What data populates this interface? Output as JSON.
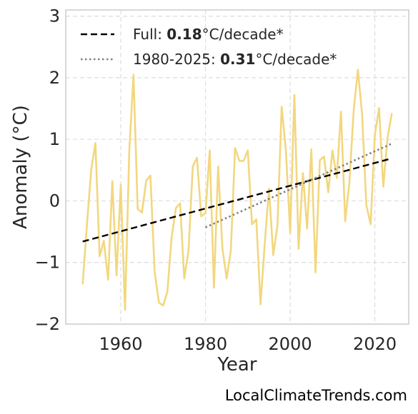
{
  "colors": {
    "series": "#f2d77e",
    "full_trend": "#000000",
    "recent_trend": "#808080",
    "grid": "#dddddd",
    "frame": "#cccccc"
  },
  "credit": "LocalClimateTrends.com",
  "chart_data": {
    "type": "line",
    "title": "",
    "xlabel": "Year",
    "ylabel": "Anomaly (°C)",
    "xlim": [
      1947,
      2028
    ],
    "ylim": [
      -2.0,
      3.1
    ],
    "xticks": [
      1960,
      1980,
      2000,
      2020
    ],
    "yticks": [
      -2,
      -1,
      0,
      1,
      2,
      3
    ],
    "ytick_labels": [
      "−2",
      "−1",
      "0",
      "1",
      "2",
      "3"
    ],
    "grid": true,
    "legend_position": "top-left",
    "legend": [
      {
        "prefix": "Full: ",
        "value": "0.18",
        "suffix": "°C/decade*",
        "style": "dashed"
      },
      {
        "prefix": "1980-2025: ",
        "value": "0.31",
        "suffix": "°C/decade*",
        "style": "dotted"
      }
    ],
    "series": [
      {
        "x": [
          1951,
          1952,
          1953,
          1954,
          1955,
          1956,
          1957,
          1958,
          1959,
          1960,
          1961,
          1962,
          1963,
          1964,
          1965,
          1966,
          1967,
          1968,
          1969,
          1970,
          1971,
          1972,
          1973,
          1974,
          1975,
          1976,
          1977,
          1978,
          1979,
          1980,
          1981,
          1982,
          1983,
          1984,
          1985,
          1986,
          1987,
          1988,
          1989,
          1990,
          1991,
          1992,
          1993,
          1994,
          1995,
          1996,
          1997,
          1998,
          1999,
          2000,
          2001,
          2002,
          2003,
          2004,
          2005,
          2006,
          2007,
          2008,
          2009,
          2010,
          2011,
          2012,
          2013,
          2014,
          2015,
          2016,
          2017,
          2018,
          2019,
          2020,
          2021,
          2022,
          2023,
          2024
        ],
        "y": [
          -1.35,
          -0.4,
          0.5,
          0.94,
          -0.9,
          -0.65,
          -1.28,
          0.32,
          -1.21,
          0.26,
          -1.77,
          0.8,
          2.05,
          -0.13,
          -0.19,
          0.33,
          0.41,
          -1.15,
          -1.65,
          -1.7,
          -1.48,
          -0.6,
          -0.12,
          -0.04,
          -1.26,
          -0.8,
          0.56,
          0.7,
          -0.25,
          -0.2,
          0.82,
          -1.41,
          0.56,
          -0.77,
          -1.26,
          -0.8,
          0.86,
          0.65,
          0.65,
          0.82,
          -0.38,
          -0.3,
          -1.68,
          -0.7,
          0.2,
          -0.88,
          -0.4,
          1.53,
          0.82,
          -0.52,
          1.72,
          -0.78,
          0.45,
          -0.45,
          0.84,
          -1.16,
          0.66,
          0.72,
          0.14,
          0.82,
          0.37,
          1.45,
          -0.33,
          0.3,
          1.47,
          2.13,
          1.4,
          -0.07,
          -0.38,
          1.07,
          1.51,
          0.23,
          1.03,
          1.42
        ]
      }
    ],
    "trend_lines": [
      {
        "name": "full",
        "x": [
          1951,
          2024
        ],
        "y": [
          -0.66,
          0.69
        ]
      },
      {
        "name": "recent",
        "x": [
          1980,
          2024
        ],
        "y": [
          -0.43,
          0.93
        ]
      }
    ]
  }
}
